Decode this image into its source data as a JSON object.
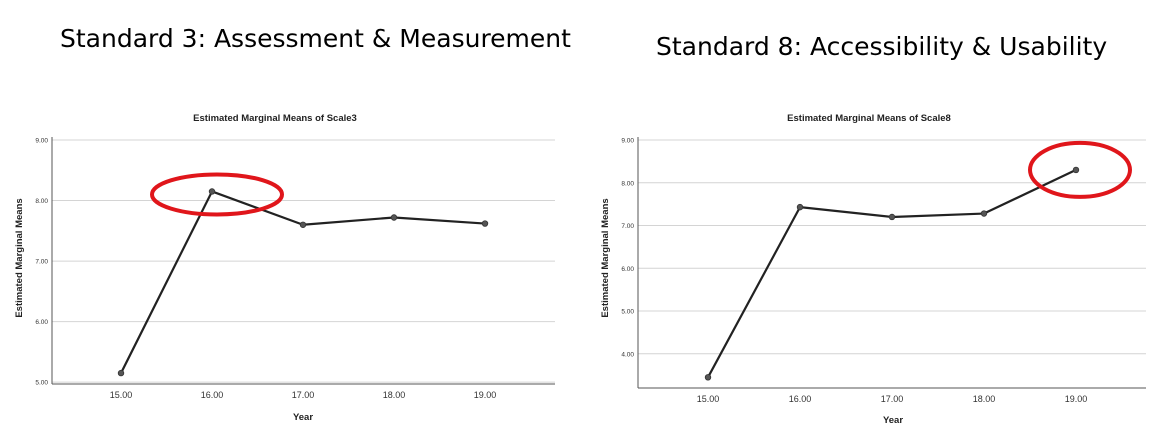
{
  "headings": {
    "left": "Standard 3: Assessment & Measurement",
    "right": "Standard 8: Accessibility & Usability"
  },
  "chart_data": [
    {
      "type": "line",
      "title": "Estimated Marginal Means of Scale3",
      "xlabel": "Year",
      "ylabel": "Estimated Marginal Means",
      "categories": [
        "15.00",
        "16.00",
        "17.00",
        "18.00",
        "19.00"
      ],
      "values": [
        5.15,
        8.15,
        7.6,
        7.72,
        7.62
      ],
      "yticks": [
        "5.00",
        "6.00",
        "7.00",
        "8.00",
        "9.00"
      ],
      "ylim": [
        4.97,
        9.0
      ],
      "grid": true,
      "highlight_index": 1,
      "line_color": "#222222",
      "highlight_color": "#e0161b"
    },
    {
      "type": "line",
      "title": "Estimated Marginal Means of Scale8",
      "xlabel": "Year",
      "ylabel": "Estimated Marginal Means",
      "categories": [
        "15.00",
        "16.00",
        "17.00",
        "18.00",
        "19.00"
      ],
      "values": [
        3.45,
        7.43,
        7.2,
        7.28,
        8.3
      ],
      "yticks": [
        "4.00",
        "5.00",
        "6.00",
        "7.00",
        "8.00",
        "9.00"
      ],
      "ylim": [
        3.2,
        9.0
      ],
      "grid": true,
      "highlight_index": 4,
      "line_color": "#222222",
      "highlight_color": "#e0161b"
    }
  ]
}
